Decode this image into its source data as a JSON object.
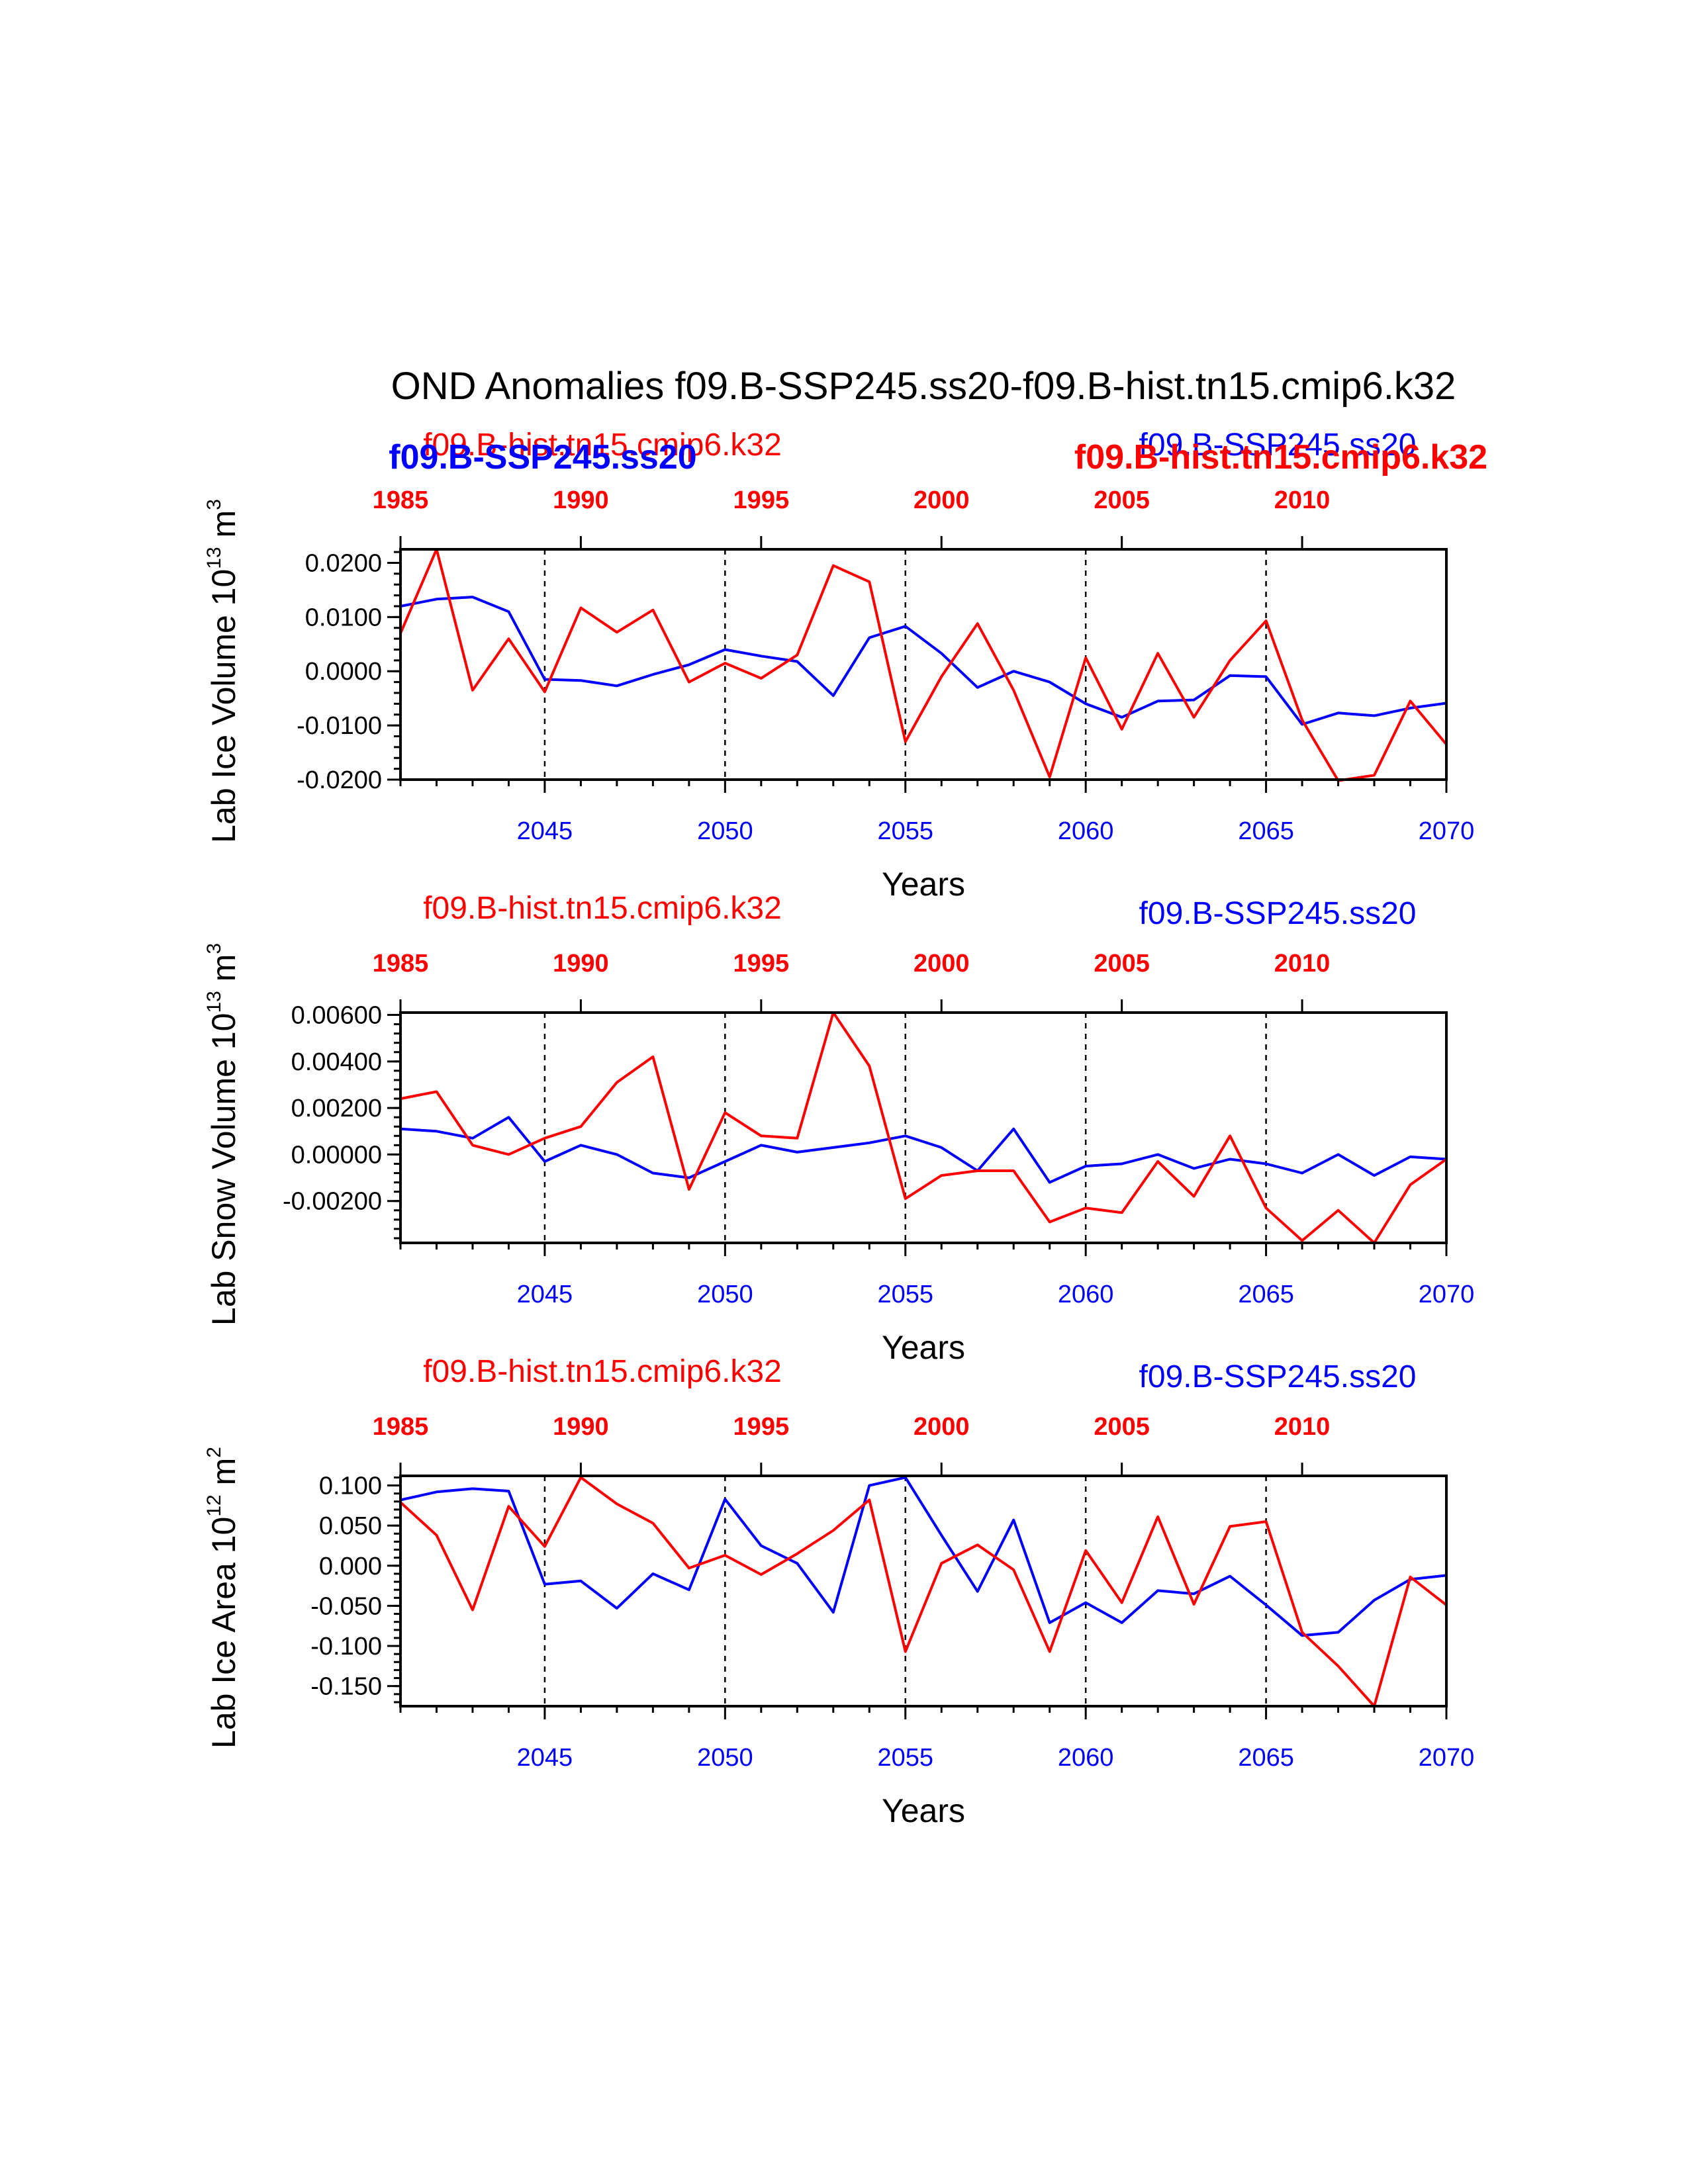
{
  "title": "OND Anomalies f09.B-SSP245.ss20-f09.B-hist.tn15.cmip6.k32",
  "colors": {
    "ssp": "#0000ff",
    "hist": "#ff0000"
  },
  "chart_data": [
    {
      "type": "line",
      "ylabel": {
        "main": "Lab Ice Volume 10",
        "exp": "13",
        "unit": " m",
        "unitexp": "3"
      },
      "xlabel": "Years",
      "xlim": [
        2041,
        2070
      ],
      "ylim": [
        -0.02,
        0.0225
      ],
      "yticks": [
        0.02,
        0.01,
        0.0,
        -0.01,
        -0.02
      ],
      "ytick_labels": [
        "0.0200",
        "0.0100",
        "0.0000",
        "-0.0100",
        "-0.0200"
      ],
      "bottom_ticks": [
        2045,
        2050,
        2055,
        2060,
        2065,
        2070
      ],
      "bottom_tick_labels": [
        "2045",
        "2050",
        "2055",
        "2060",
        "2065",
        "2070"
      ],
      "top_ticks": [
        1985,
        1990,
        1995,
        2000,
        2005,
        2010
      ],
      "top_tick_labels": [
        "1985",
        "1990",
        "1995",
        "2000",
        "2005",
        "2010"
      ],
      "top_offset": 56,
      "vlines": [
        2045,
        2050,
        2055,
        2060,
        2065
      ],
      "label_style": "overlap",
      "labels_hist": [
        "f09.B-hist.tn15.cmip6.k32",
        "f09.B-hist.tn15.cmip6.k32"
      ],
      "labels_ssp": [
        "f09.B-SSP245.ss20",
        "f09.B-SSP245.ss20"
      ],
      "x": [
        2041,
        2042,
        2043,
        2044,
        2045,
        2046,
        2047,
        2048,
        2049,
        2050,
        2051,
        2052,
        2053,
        2054,
        2055,
        2056,
        2057,
        2058,
        2059,
        2060,
        2061,
        2062,
        2063,
        2064,
        2065,
        2066,
        2067,
        2068,
        2069,
        2070
      ],
      "series": [
        {
          "name": "f09.B-SSP245.ss20",
          "color": "#0000ff",
          "values": [
            0.012,
            0.0133,
            0.0137,
            0.011,
            -0.0015,
            -0.0017,
            -0.0027,
            -0.0006,
            0.0012,
            0.004,
            0.0028,
            0.0018,
            -0.0045,
            0.0062,
            0.0083,
            0.0033,
            -0.003,
            0.0,
            -0.002,
            -0.006,
            -0.0085,
            -0.0055,
            -0.0053,
            -0.0008,
            -0.001,
            -0.0098,
            -0.0077,
            -0.0082,
            -0.0068,
            -0.0059
          ]
        },
        {
          "name": "f09.B-hist.tn15.cmip6.k32",
          "color": "#ff0000",
          "values": [
            0.007,
            0.0225,
            -0.0035,
            0.006,
            -0.0038,
            0.0117,
            0.0072,
            0.0113,
            -0.002,
            0.0015,
            -0.0013,
            0.003,
            0.0195,
            0.0165,
            -0.013,
            -0.001,
            0.0088,
            -0.0035,
            -0.0195,
            0.0025,
            -0.0107,
            0.0033,
            -0.0085,
            0.002,
            0.0093,
            -0.009,
            -0.0202,
            -0.0192,
            -0.0055,
            -0.0135
          ]
        }
      ]
    },
    {
      "type": "line",
      "ylabel": {
        "main": "Lab Snow Volume 10",
        "exp": "13",
        "unit": " m",
        "unitexp": "3"
      },
      "xlabel": "Years",
      "xlim": [
        2041,
        2070
      ],
      "ylim": [
        -0.0038,
        0.0061
      ],
      "yticks": [
        0.006,
        0.004,
        0.002,
        0.0,
        -0.002
      ],
      "ytick_labels": [
        "0.00600",
        "0.00400",
        "0.00200",
        "0.00000",
        "-0.00200"
      ],
      "bottom_ticks": [
        2045,
        2050,
        2055,
        2060,
        2065,
        2070
      ],
      "bottom_tick_labels": [
        "2045",
        "2050",
        "2055",
        "2060",
        "2065",
        "2070"
      ],
      "top_ticks": [
        1985,
        1990,
        1995,
        2000,
        2005,
        2010
      ],
      "top_tick_labels": [
        "1985",
        "1990",
        "1995",
        "2000",
        "2005",
        "2010"
      ],
      "top_offset": 56,
      "vlines": [
        2045,
        2050,
        2055,
        2060,
        2065
      ],
      "label_style": "plain",
      "labels_hist": [
        "f09.B-hist.tn15.cmip6.k32"
      ],
      "labels_ssp": [
        "f09.B-SSP245.ss20"
      ],
      "x": [
        2041,
        2042,
        2043,
        2044,
        2045,
        2046,
        2047,
        2048,
        2049,
        2050,
        2051,
        2052,
        2053,
        2054,
        2055,
        2056,
        2057,
        2058,
        2059,
        2060,
        2061,
        2062,
        2063,
        2064,
        2065,
        2066,
        2067,
        2068,
        2069,
        2070
      ],
      "series": [
        {
          "name": "f09.B-SSP245.ss20",
          "color": "#0000ff",
          "values": [
            0.0011,
            0.001,
            0.0007,
            0.0016,
            -0.0003,
            0.0004,
            0.0,
            -0.0008,
            -0.001,
            -0.0003,
            0.0004,
            0.0001,
            0.0003,
            0.0005,
            0.0008,
            0.0003,
            -0.0007,
            0.0011,
            -0.0012,
            -0.0005,
            -0.0004,
            0.0,
            -0.0006,
            -0.0002,
            -0.0004,
            -0.0008,
            0.0,
            -0.0009,
            -0.0001,
            -0.0002
          ]
        },
        {
          "name": "f09.B-hist.tn15.cmip6.k32",
          "color": "#ff0000",
          "values": [
            0.0024,
            0.0027,
            0.0004,
            0.0,
            0.0007,
            0.0012,
            0.0031,
            0.0042,
            -0.0015,
            0.0018,
            0.0008,
            0.0007,
            0.0061,
            0.0038,
            -0.0019,
            -0.0009,
            -0.0007,
            -0.0007,
            -0.0029,
            -0.0023,
            -0.0025,
            -0.0003,
            -0.0018,
            0.0008,
            -0.0023,
            -0.0037,
            -0.0024,
            -0.0038,
            -0.0013,
            -0.0002
          ]
        }
      ]
    },
    {
      "type": "line",
      "ylabel": {
        "main": "Lab Ice Area 10",
        "exp": "12",
        "unit": " m",
        "unitexp": "2"
      },
      "xlabel": "Years",
      "xlim": [
        2041,
        2070
      ],
      "ylim": [
        -0.175,
        0.112
      ],
      "yticks": [
        0.1,
        0.05,
        0.0,
        -0.05,
        -0.1,
        -0.15
      ],
      "ytick_labels": [
        "0.100",
        "0.050",
        "0.000",
        "-0.050",
        "-0.100",
        "-0.150"
      ],
      "bottom_ticks": [
        2045,
        2050,
        2055,
        2060,
        2065,
        2070
      ],
      "bottom_tick_labels": [
        "2045",
        "2050",
        "2055",
        "2060",
        "2065",
        "2070"
      ],
      "top_ticks": [
        1985,
        1990,
        1995,
        2000,
        2005,
        2010
      ],
      "top_tick_labels": [
        "1985",
        "1990",
        "1995",
        "2000",
        "2005",
        "2010"
      ],
      "top_offset": 56,
      "vlines": [
        2045,
        2050,
        2055,
        2060,
        2065
      ],
      "label_style": "plain",
      "labels_hist": [
        "f09.B-hist.tn15.cmip6.k32"
      ],
      "labels_ssp": [
        "f09.B-SSP245.ss20"
      ],
      "x": [
        2041,
        2042,
        2043,
        2044,
        2045,
        2046,
        2047,
        2048,
        2049,
        2050,
        2051,
        2052,
        2053,
        2054,
        2055,
        2056,
        2057,
        2058,
        2059,
        2060,
        2061,
        2062,
        2063,
        2064,
        2065,
        2066,
        2067,
        2068,
        2069,
        2070
      ],
      "series": [
        {
          "name": "f09.B-SSP245.ss20",
          "color": "#0000ff",
          "values": [
            0.082,
            0.092,
            0.096,
            0.093,
            -0.023,
            -0.019,
            -0.053,
            -0.01,
            -0.03,
            0.083,
            0.025,
            0.003,
            -0.058,
            0.1,
            0.11,
            0.038,
            -0.032,
            0.057,
            -0.071,
            -0.046,
            -0.071,
            -0.031,
            -0.035,
            -0.013,
            -0.049,
            -0.087,
            -0.083,
            -0.043,
            -0.017,
            -0.012
          ]
        },
        {
          "name": "f09.B-hist.tn15.cmip6.k32",
          "color": "#ff0000",
          "values": [
            0.079,
            0.038,
            -0.055,
            0.074,
            0.024,
            0.11,
            0.077,
            0.053,
            -0.003,
            0.013,
            -0.011,
            0.015,
            0.044,
            0.082,
            -0.107,
            0.003,
            0.026,
            -0.005,
            -0.107,
            0.019,
            -0.046,
            0.061,
            -0.048,
            0.049,
            0.055,
            -0.083,
            -0.125,
            -0.175,
            -0.014,
            -0.049
          ]
        }
      ]
    }
  ]
}
